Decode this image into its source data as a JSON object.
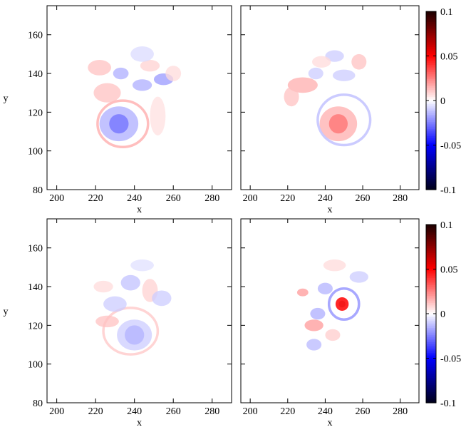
{
  "chart_data": [
    {
      "type": "heatmap",
      "panel": "top-left",
      "xlabel": "x",
      "ylabel": "y",
      "xlim": [
        195,
        290
      ],
      "ylim": [
        80,
        175
      ],
      "x_ticks": [
        "200",
        "220",
        "240",
        "260",
        "280"
      ],
      "y_ticks": [
        "80",
        "100",
        "120",
        "140",
        "160"
      ],
      "features": [
        {
          "shape": "blob",
          "x": 232,
          "y": 114,
          "rx": 5,
          "ry": 5,
          "value": -0.05
        },
        {
          "shape": "blob",
          "x": 232,
          "y": 114,
          "rx": 10,
          "ry": 9,
          "value": -0.016
        },
        {
          "shape": "ring",
          "x": 234,
          "y": 114,
          "rx": 13,
          "ry": 12,
          "value": 0.015
        },
        {
          "shape": "blob",
          "x": 226,
          "y": 130,
          "rx": 7,
          "ry": 5,
          "value": 0.012
        },
        {
          "shape": "blob",
          "x": 222,
          "y": 143,
          "rx": 6,
          "ry": 4,
          "value": 0.012
        },
        {
          "shape": "blob",
          "x": 233,
          "y": 140,
          "rx": 4,
          "ry": 3,
          "value": -0.016
        },
        {
          "shape": "blob",
          "x": 244,
          "y": 134,
          "rx": 5,
          "ry": 3,
          "value": -0.016
        },
        {
          "shape": "blob",
          "x": 255,
          "y": 137,
          "rx": 5,
          "ry": 3,
          "value": -0.02
        },
        {
          "shape": "blob",
          "x": 248,
          "y": 144,
          "rx": 5,
          "ry": 3,
          "value": 0.009
        },
        {
          "shape": "blob",
          "x": 260,
          "y": 140,
          "rx": 4,
          "ry": 4,
          "value": 0.007
        },
        {
          "shape": "blob",
          "x": 244,
          "y": 150,
          "rx": 6,
          "ry": 4,
          "value": -0.007
        },
        {
          "shape": "blob",
          "x": 252,
          "y": 118,
          "rx": 4,
          "ry": 10,
          "value": 0.006
        }
      ]
    },
    {
      "type": "heatmap",
      "panel": "top-right",
      "xlabel": "x",
      "xlim": [
        195,
        290
      ],
      "ylim": [
        80,
        175
      ],
      "x_ticks": [
        "200",
        "220",
        "240",
        "260",
        "280"
      ],
      "features": [
        {
          "shape": "blob",
          "x": 247,
          "y": 114,
          "rx": 5,
          "ry": 5,
          "value": 0.05
        },
        {
          "shape": "blob",
          "x": 247,
          "y": 114,
          "rx": 10,
          "ry": 9,
          "value": 0.016
        },
        {
          "shape": "ring",
          "x": 250,
          "y": 116,
          "rx": 14,
          "ry": 13,
          "value": -0.012
        },
        {
          "shape": "blob",
          "x": 228,
          "y": 134,
          "rx": 8,
          "ry": 4,
          "value": 0.016
        },
        {
          "shape": "blob",
          "x": 222,
          "y": 128,
          "rx": 4,
          "ry": 5,
          "value": 0.012
        },
        {
          "shape": "blob",
          "x": 235,
          "y": 140,
          "rx": 4,
          "ry": 3,
          "value": -0.01
        },
        {
          "shape": "blob",
          "x": 250,
          "y": 139,
          "rx": 6,
          "ry": 3,
          "value": -0.01
        },
        {
          "shape": "blob",
          "x": 258,
          "y": 146,
          "rx": 4,
          "ry": 4,
          "value": 0.012
        },
        {
          "shape": "blob",
          "x": 245,
          "y": 149,
          "rx": 5,
          "ry": 3,
          "value": -0.01
        },
        {
          "shape": "blob",
          "x": 238,
          "y": 146,
          "rx": 5,
          "ry": 3,
          "value": 0.007
        }
      ]
    },
    {
      "type": "heatmap",
      "panel": "bottom-left",
      "xlabel": "x",
      "ylabel": "y",
      "xlim": [
        195,
        290
      ],
      "ylim": [
        80,
        175
      ],
      "x_ticks": [
        "200",
        "220",
        "240",
        "260",
        "280"
      ],
      "y_ticks": [
        "80",
        "100",
        "120",
        "140",
        "160"
      ],
      "features": [
        {
          "shape": "blob",
          "x": 240,
          "y": 115,
          "rx": 5,
          "ry": 5,
          "value": -0.03
        },
        {
          "shape": "blob",
          "x": 240,
          "y": 115,
          "rx": 9,
          "ry": 8,
          "value": -0.01
        },
        {
          "shape": "ring",
          "x": 238,
          "y": 117,
          "rx": 14,
          "ry": 12,
          "value": 0.01
        },
        {
          "shape": "blob",
          "x": 226,
          "y": 122,
          "rx": 6,
          "ry": 3,
          "value": 0.012
        },
        {
          "shape": "blob",
          "x": 230,
          "y": 131,
          "rx": 6,
          "ry": 4,
          "value": -0.01
        },
        {
          "shape": "blob",
          "x": 238,
          "y": 142,
          "rx": 5,
          "ry": 4,
          "value": -0.012
        },
        {
          "shape": "blob",
          "x": 248,
          "y": 138,
          "rx": 4,
          "ry": 6,
          "value": 0.009
        },
        {
          "shape": "blob",
          "x": 254,
          "y": 134,
          "rx": 5,
          "ry": 4,
          "value": -0.01
        },
        {
          "shape": "blob",
          "x": 224,
          "y": 140,
          "rx": 5,
          "ry": 3,
          "value": 0.007
        },
        {
          "shape": "blob",
          "x": 244,
          "y": 151,
          "rx": 6,
          "ry": 3,
          "value": -0.006
        }
      ]
    },
    {
      "type": "heatmap",
      "panel": "bottom-right",
      "xlabel": "x",
      "xlim": [
        195,
        290
      ],
      "ylim": [
        80,
        175
      ],
      "x_ticks": [
        "200",
        "220",
        "240",
        "260",
        "280"
      ],
      "features": [
        {
          "shape": "blob",
          "x": 249,
          "y": 131,
          "rx": 1.8,
          "ry": 1.8,
          "value": 0.1
        },
        {
          "shape": "blob",
          "x": 249,
          "y": 131,
          "rx": 3.5,
          "ry": 3.5,
          "value": 0.045
        },
        {
          "shape": "ring",
          "x": 250,
          "y": 131,
          "rx": 8,
          "ry": 8,
          "value": -0.02
        },
        {
          "shape": "blob",
          "x": 240,
          "y": 139,
          "rx": 4,
          "ry": 3,
          "value": -0.015
        },
        {
          "shape": "blob",
          "x": 228,
          "y": 137,
          "rx": 3,
          "ry": 2,
          "value": 0.02
        },
        {
          "shape": "blob",
          "x": 234,
          "y": 120,
          "rx": 5,
          "ry": 3,
          "value": 0.02
        },
        {
          "shape": "blob",
          "x": 236,
          "y": 126,
          "rx": 4,
          "ry": 3,
          "value": -0.016
        },
        {
          "shape": "blob",
          "x": 234,
          "y": 110,
          "rx": 4,
          "ry": 3,
          "value": -0.014
        },
        {
          "shape": "blob",
          "x": 244,
          "y": 115,
          "rx": 4,
          "ry": 3,
          "value": 0.01
        },
        {
          "shape": "blob",
          "x": 258,
          "y": 145,
          "rx": 5,
          "ry": 3,
          "value": -0.01
        },
        {
          "shape": "blob",
          "x": 245,
          "y": 151,
          "rx": 6,
          "ry": 3,
          "value": 0.007
        }
      ]
    }
  ],
  "colorbars": [
    {
      "panel": "top",
      "clim": [
        -0.1,
        0.1
      ],
      "ticks": [
        "0.1",
        "0.05",
        "0",
        "-0.05",
        "-0.1"
      ]
    },
    {
      "panel": "bottom",
      "clim": [
        -0.1,
        0.1
      ],
      "ticks": [
        "0.1",
        "0.05",
        "0",
        "-0.05",
        "-0.1"
      ]
    }
  ],
  "colormap": {
    "min": "#00001a",
    "neg": "#0000ff",
    "zero": "#ffffff",
    "pos": "#ff0000",
    "max": "#1a0000"
  }
}
